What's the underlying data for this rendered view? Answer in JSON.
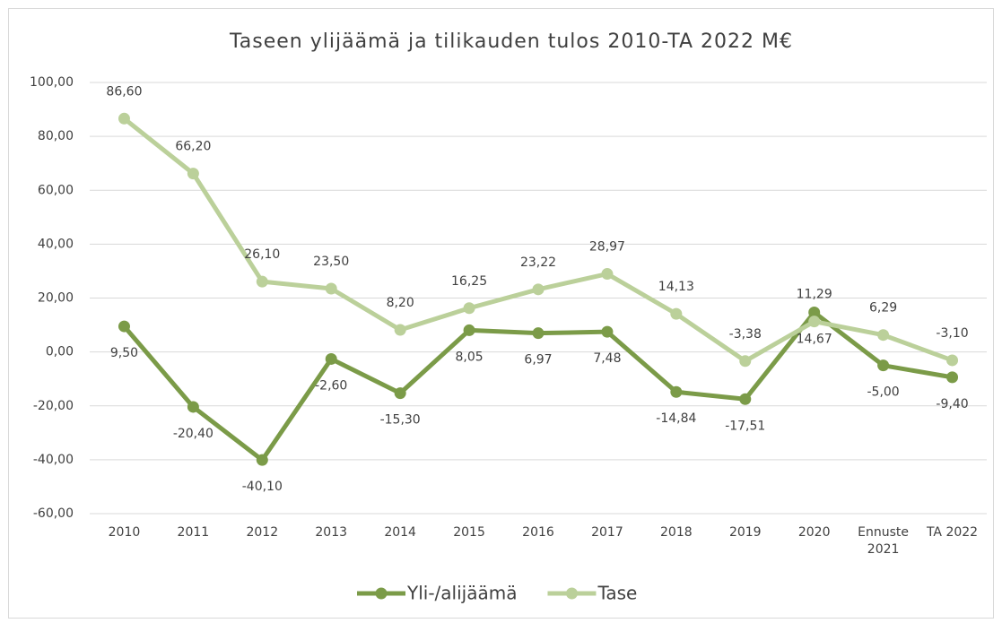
{
  "chart_data": {
    "type": "line",
    "title": "Taseen ylijäämä ja tilikauden tulos 2010-TA 2022 M€",
    "categories": [
      "2010",
      "2011",
      "2012",
      "2013",
      "2014",
      "2015",
      "2016",
      "2017",
      "2018",
      "2019",
      "2020",
      "Ennuste 2021",
      "TA 2022"
    ],
    "series": [
      {
        "name": "Yli-/alijäämä",
        "color": "#7b9b48",
        "values": [
          9.5,
          -20.4,
          -40.1,
          -2.6,
          -15.3,
          8.05,
          6.97,
          7.48,
          -14.84,
          -17.51,
          14.67,
          -5.0,
          -9.4
        ],
        "value_labels": [
          "9,50",
          "-20,40",
          "-40,10",
          "-2,60",
          "-15,30",
          "8,05",
          "6,97",
          "7,48",
          "-14,84",
          "-17,51",
          "14,67",
          "-5,00",
          "-9,40"
        ]
      },
      {
        "name": "Tase",
        "color": "#bbd09a",
        "values": [
          86.6,
          66.2,
          26.1,
          23.5,
          8.2,
          16.25,
          23.22,
          28.97,
          14.13,
          -3.38,
          11.29,
          6.29,
          -3.1
        ],
        "value_labels": [
          "86,60",
          "66,20",
          "26,10",
          "23,50",
          "8,20",
          "16,25",
          "23,22",
          "28,97",
          "14,13",
          "-3,38",
          "11,29",
          "6,29",
          "-3,10"
        ]
      }
    ],
    "ylim": [
      -60,
      100
    ],
    "yticks": [
      {
        "value": -60,
        "label": "-60,00"
      },
      {
        "value": -40,
        "label": "-40,00"
      },
      {
        "value": -20,
        "label": "-20,00"
      },
      {
        "value": 0,
        "label": "0,00"
      },
      {
        "value": 20,
        "label": "20,00"
      },
      {
        "value": 40,
        "label": "40,00"
      },
      {
        "value": 60,
        "label": "60,00"
      },
      {
        "value": 80,
        "label": "80,00"
      },
      {
        "value": 100,
        "label": "100,00"
      }
    ],
    "grid": true,
    "legend": "bottom"
  }
}
